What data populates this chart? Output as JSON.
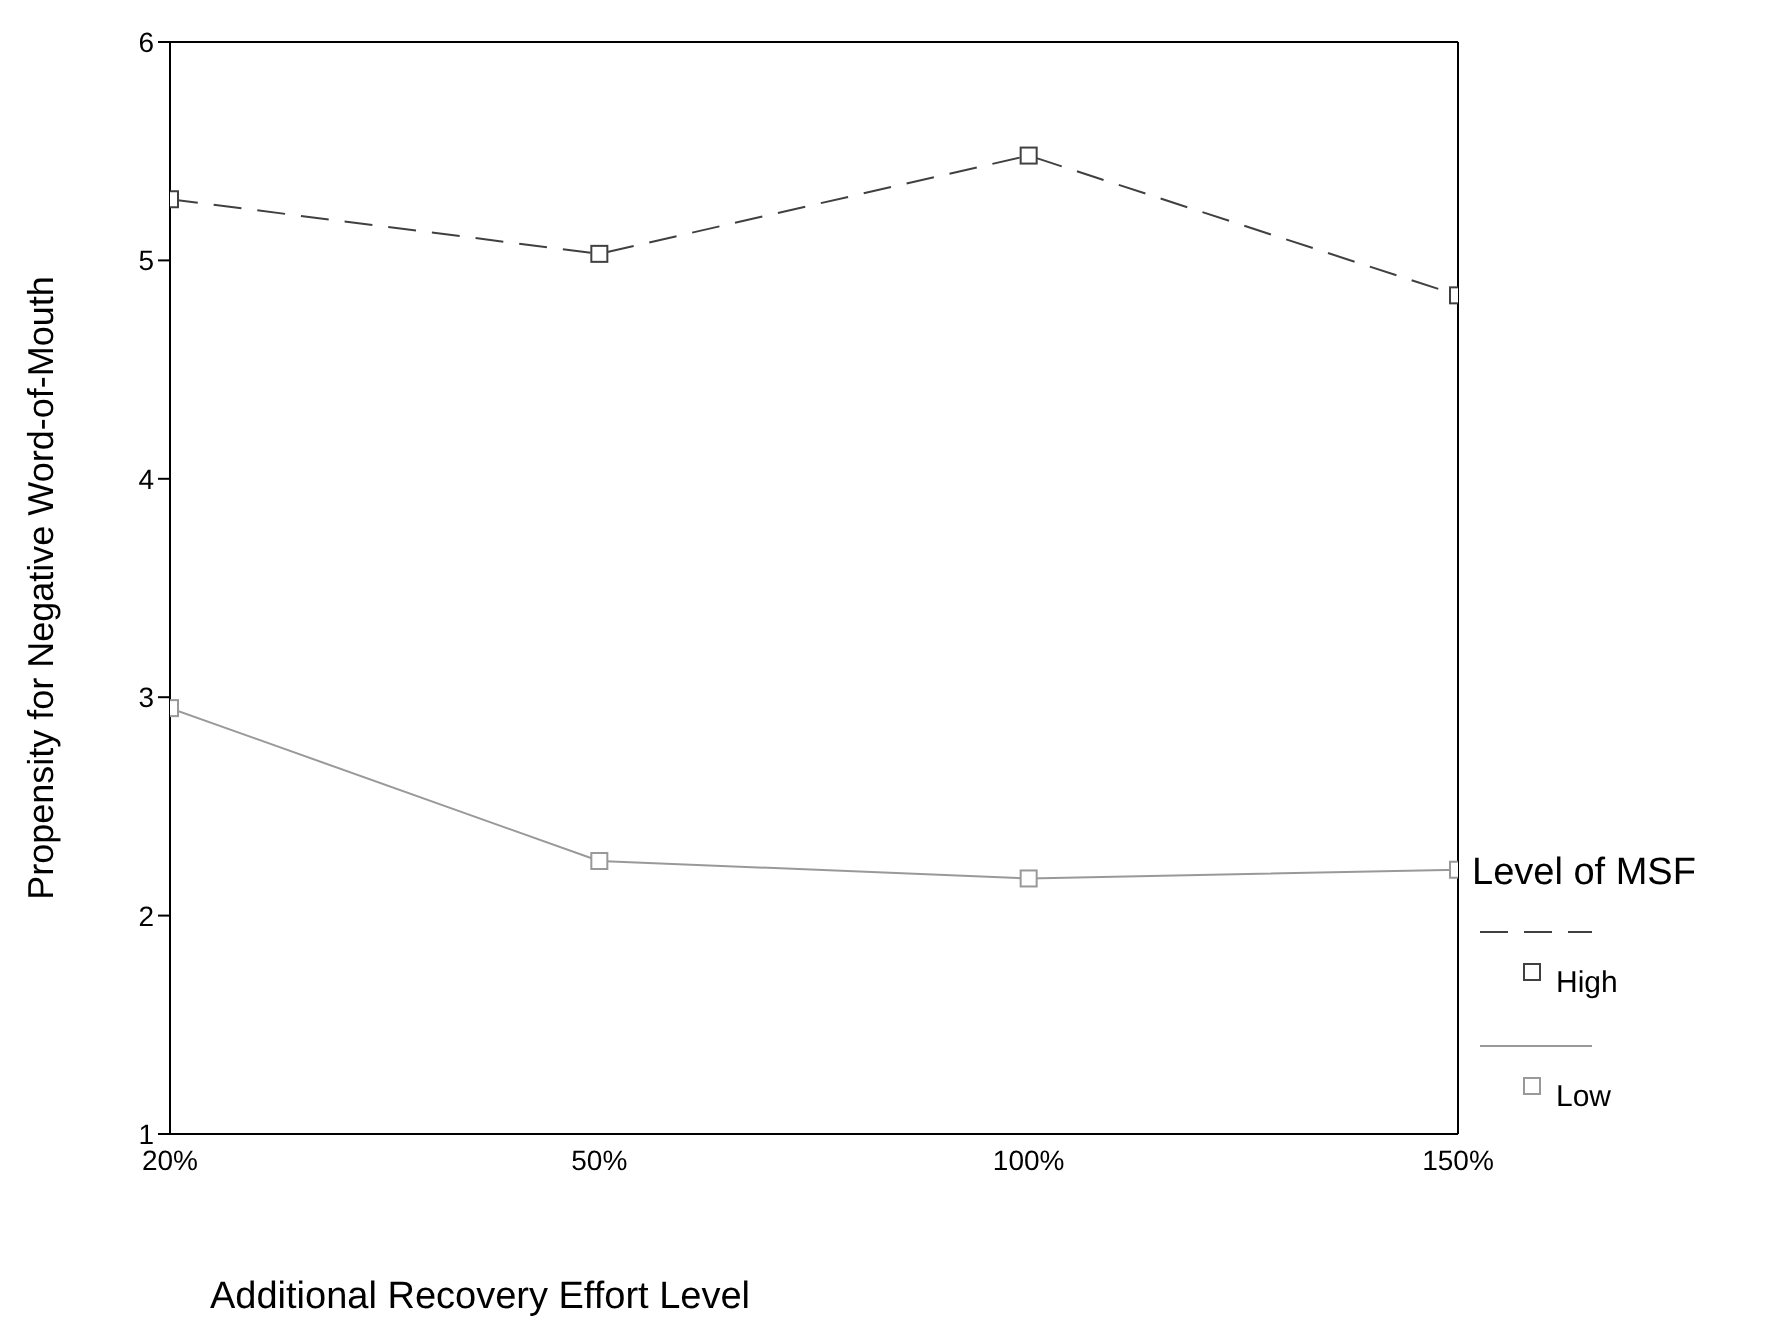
{
  "chart_data": {
    "type": "line",
    "xlabel": "Additional Recovery Effort Level",
    "ylabel": "Propensity for Negative Word-of-Mouth",
    "legend_title": "Level of MSF",
    "categories": [
      "20%",
      "50%",
      "100%",
      "150%"
    ],
    "series": [
      {
        "name": "High",
        "color": "#404040",
        "line_style": "dashed",
        "values": [
          5.28,
          5.03,
          5.48,
          4.84
        ]
      },
      {
        "name": "Low",
        "color": "#999999",
        "line_style": "solid",
        "values": [
          2.95,
          2.25,
          2.17,
          2.21
        ]
      }
    ],
    "ylim": [
      1,
      6
    ],
    "yticks": [
      1,
      2,
      3,
      4,
      5,
      6
    ],
    "marker": "square",
    "legend": "right"
  }
}
